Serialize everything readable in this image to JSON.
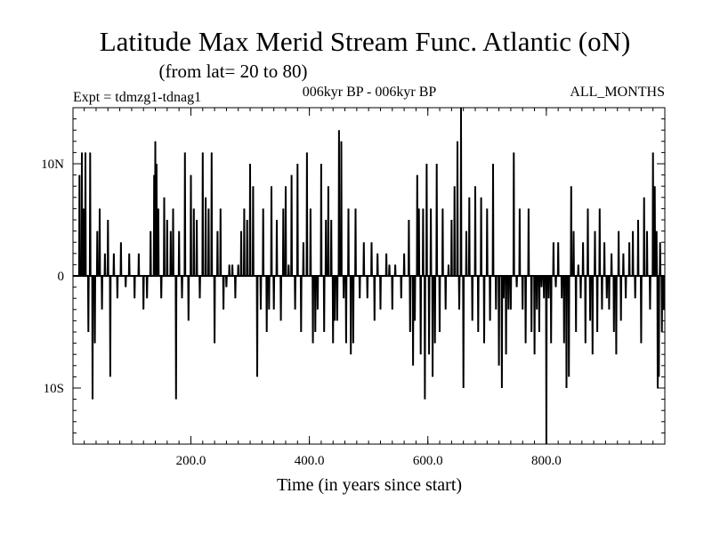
{
  "chart_data": {
    "type": "line",
    "title": "Latitude Max Merid Stream Func. Atlantic (oN)",
    "subtitle": "(from lat= 20 to 80)",
    "experiment_label": "Expt = tdmzg1-tdnag1",
    "period_label": "006kyr BP - 006kyr BP",
    "season_label": "ALL_MONTHS",
    "xlabel": "Time (in years since start)",
    "ylabel": "",
    "xlim": [
      1,
      1000
    ],
    "ylim": [
      -15,
      15
    ],
    "x_ticks": [
      {
        "value": 200,
        "label": "200.0"
      },
      {
        "value": 400,
        "label": "400.0"
      },
      {
        "value": 600,
        "label": "600.0"
      },
      {
        "value": 800,
        "label": "800.0"
      }
    ],
    "y_ticks": [
      {
        "value": 10,
        "label": "10N"
      },
      {
        "value": 0,
        "label": "0"
      },
      {
        "value": -10,
        "label": "10S"
      }
    ],
    "x_minor_step": 20,
    "y_minor_step": 1,
    "spikes": [
      [
        12,
        9
      ],
      [
        16,
        11
      ],
      [
        19,
        6
      ],
      [
        22,
        11
      ],
      [
        27,
        -5
      ],
      [
        30,
        11
      ],
      [
        34,
        -11
      ],
      [
        38,
        -6
      ],
      [
        42,
        4
      ],
      [
        46,
        6
      ],
      [
        50,
        -3
      ],
      [
        55,
        2
      ],
      [
        60,
        5
      ],
      [
        64,
        -9
      ],
      [
        70,
        2
      ],
      [
        76,
        -2
      ],
      [
        82,
        3
      ],
      [
        90,
        -1
      ],
      [
        96,
        2
      ],
      [
        105,
        -2
      ],
      [
        112,
        2
      ],
      [
        120,
        -3
      ],
      [
        126,
        -2
      ],
      [
        132,
        4
      ],
      [
        138,
        9
      ],
      [
        140,
        12
      ],
      [
        142,
        10
      ],
      [
        145,
        6
      ],
      [
        150,
        -2
      ],
      [
        155,
        7
      ],
      [
        160,
        5
      ],
      [
        166,
        4
      ],
      [
        170,
        6
      ],
      [
        175,
        -11
      ],
      [
        180,
        4
      ],
      [
        185,
        -2
      ],
      [
        190,
        11
      ],
      [
        196,
        -4
      ],
      [
        200,
        9
      ],
      [
        205,
        6
      ],
      [
        210,
        5
      ],
      [
        215,
        -2
      ],
      [
        220,
        11
      ],
      [
        225,
        7
      ],
      [
        230,
        6
      ],
      [
        235,
        11
      ],
      [
        240,
        -6
      ],
      [
        245,
        4
      ],
      [
        250,
        6
      ],
      [
        255,
        -3
      ],
      [
        260,
        -1
      ],
      [
        265,
        1
      ],
      [
        270,
        1
      ],
      [
        275,
        -2
      ],
      [
        280,
        1
      ],
      [
        285,
        4
      ],
      [
        290,
        6
      ],
      [
        295,
        5
      ],
      [
        300,
        10
      ],
      [
        305,
        8
      ],
      [
        312,
        -9
      ],
      [
        318,
        -3
      ],
      [
        322,
        6
      ],
      [
        328,
        -5
      ],
      [
        332,
        -3
      ],
      [
        336,
        8
      ],
      [
        340,
        -3
      ],
      [
        345,
        5
      ],
      [
        352,
        -4
      ],
      [
        356,
        6
      ],
      [
        360,
        8
      ],
      [
        365,
        1
      ],
      [
        370,
        9
      ],
      [
        376,
        -3
      ],
      [
        380,
        10
      ],
      [
        386,
        -5
      ],
      [
        390,
        3
      ],
      [
        396,
        11
      ],
      [
        402,
        6
      ],
      [
        406,
        -6
      ],
      [
        410,
        -5
      ],
      [
        414,
        -3
      ],
      [
        420,
        10
      ],
      [
        425,
        -5
      ],
      [
        428,
        5
      ],
      [
        432,
        8
      ],
      [
        437,
        5
      ],
      [
        440,
        -6
      ],
      [
        443,
        -4
      ],
      [
        447,
        -4
      ],
      [
        450,
        13
      ],
      [
        454,
        12
      ],
      [
        458,
        -2
      ],
      [
        462,
        -6
      ],
      [
        466,
        6
      ],
      [
        470,
        -7
      ],
      [
        474,
        -6
      ],
      [
        478,
        6
      ],
      [
        485,
        -2
      ],
      [
        492,
        3
      ],
      [
        498,
        -2
      ],
      [
        505,
        3
      ],
      [
        510,
        -4
      ],
      [
        515,
        2
      ],
      [
        520,
        -3
      ],
      [
        530,
        2
      ],
      [
        535,
        1
      ],
      [
        540,
        -3
      ],
      [
        545,
        1
      ],
      [
        555,
        -2
      ],
      [
        560,
        2
      ],
      [
        568,
        5
      ],
      [
        570,
        -5
      ],
      [
        575,
        -8
      ],
      [
        578,
        -4
      ],
      [
        582,
        9
      ],
      [
        585,
        6
      ],
      [
        588,
        -7
      ],
      [
        592,
        6
      ],
      [
        595,
        -11
      ],
      [
        598,
        10
      ],
      [
        602,
        -7
      ],
      [
        605,
        6
      ],
      [
        608,
        -9
      ],
      [
        612,
        -6
      ],
      [
        615,
        10
      ],
      [
        620,
        -5
      ],
      [
        625,
        6
      ],
      [
        630,
        -3
      ],
      [
        635,
        1
      ],
      [
        640,
        5
      ],
      [
        645,
        8
      ],
      [
        650,
        12
      ],
      [
        653,
        -3
      ],
      [
        656,
        15
      ],
      [
        660,
        -10
      ],
      [
        665,
        4
      ],
      [
        670,
        7
      ],
      [
        675,
        -4
      ],
      [
        680,
        8
      ],
      [
        685,
        -5
      ],
      [
        690,
        7
      ],
      [
        695,
        -6
      ],
      [
        700,
        6
      ],
      [
        705,
        -4
      ],
      [
        710,
        10
      ],
      [
        715,
        -3
      ],
      [
        720,
        -8
      ],
      [
        725,
        -10
      ],
      [
        728,
        -2
      ],
      [
        732,
        -7
      ],
      [
        736,
        -3
      ],
      [
        740,
        -3
      ],
      [
        745,
        11
      ],
      [
        750,
        -1
      ],
      [
        755,
        6
      ],
      [
        760,
        -3
      ],
      [
        765,
        -6
      ],
      [
        770,
        6
      ],
      [
        775,
        -5
      ],
      [
        780,
        -7
      ],
      [
        784,
        -3
      ],
      [
        788,
        -5
      ],
      [
        792,
        -1
      ],
      [
        796,
        -2
      ],
      [
        800,
        -15
      ],
      [
        804,
        -2
      ],
      [
        808,
        -6
      ],
      [
        812,
        3
      ],
      [
        816,
        -1
      ],
      [
        820,
        3
      ],
      [
        826,
        -2
      ],
      [
        830,
        -6
      ],
      [
        834,
        -10
      ],
      [
        838,
        -9
      ],
      [
        842,
        8
      ],
      [
        846,
        4
      ],
      [
        850,
        -5
      ],
      [
        854,
        1
      ],
      [
        858,
        -2
      ],
      [
        862,
        3
      ],
      [
        866,
        -6
      ],
      [
        870,
        6
      ],
      [
        874,
        -4
      ],
      [
        878,
        -7
      ],
      [
        882,
        4
      ],
      [
        886,
        -5
      ],
      [
        890,
        6
      ],
      [
        894,
        -3
      ],
      [
        898,
        3
      ],
      [
        902,
        -2
      ],
      [
        906,
        -3
      ],
      [
        910,
        2
      ],
      [
        914,
        -5
      ],
      [
        918,
        -7
      ],
      [
        922,
        4
      ],
      [
        926,
        -4
      ],
      [
        930,
        2
      ],
      [
        934,
        -2
      ],
      [
        940,
        3
      ],
      [
        946,
        4
      ],
      [
        950,
        -2
      ],
      [
        955,
        5
      ],
      [
        960,
        -6
      ],
      [
        965,
        7
      ],
      [
        970,
        4
      ],
      [
        975,
        -3
      ],
      [
        980,
        11
      ],
      [
        983,
        8
      ],
      [
        986,
        4
      ],
      [
        988,
        -10
      ],
      [
        990,
        -9
      ],
      [
        992,
        3
      ],
      [
        995,
        -5
      ],
      [
        998,
        -3
      ]
    ]
  }
}
